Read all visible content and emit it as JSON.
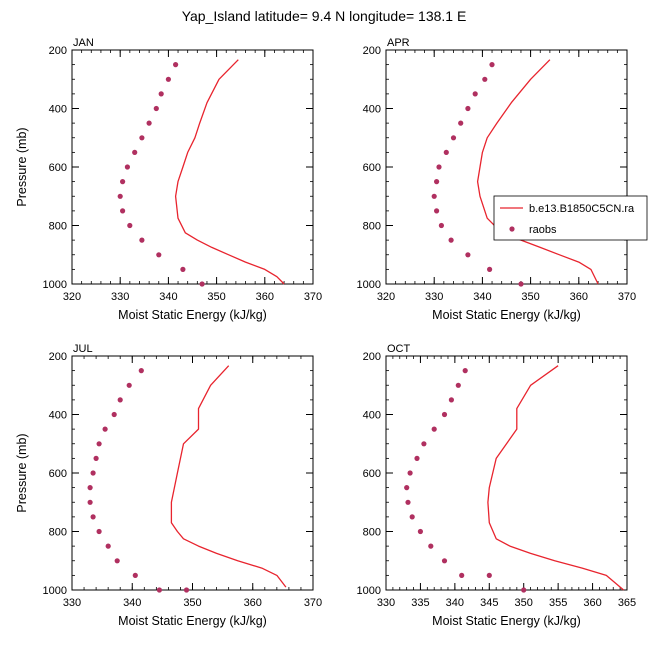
{
  "figure": {
    "title": "Yap_Island  latitude= 9.4 N longitude= 138.1 E"
  },
  "legend": {
    "entries": [
      {
        "label": "b.e13.B1850C5CN.ra",
        "kind": "line",
        "color": "#e8242e"
      },
      {
        "label": "raobs",
        "kind": "marker",
        "color": "#b03060"
      }
    ]
  },
  "colors": {
    "model_line": "#e8242e",
    "obs_marker": "#b03060"
  },
  "chart_data": [
    {
      "type": "line",
      "title": "JAN",
      "xlabel": "Moist Static Energy (kJ/kg)",
      "ylabel": "Pressure (mb)",
      "xlim": [
        320,
        370
      ],
      "ylim": [
        1000,
        200
      ],
      "xticks": [
        320,
        330,
        340,
        350,
        360,
        370
      ],
      "yticks": [
        200,
        400,
        600,
        800,
        1000
      ],
      "y_inverted": true,
      "grid": false,
      "series": [
        {
          "name": "b.e13.B1850C5CN.ra",
          "kind": "line",
          "x": [
            354.5,
            350.5,
            348,
            346.5,
            345.5,
            344,
            343,
            342,
            341.5,
            342,
            343.5,
            346,
            349,
            352.5,
            356,
            360,
            362.5,
            364
          ],
          "y": [
            233,
            300,
            380,
            450,
            500,
            550,
            600,
            650,
            700,
            775,
            825,
            850,
            875,
            900,
            925,
            950,
            975,
            1000
          ]
        },
        {
          "name": "raobs",
          "kind": "scatter",
          "x": [
            341.5,
            340,
            338.5,
            337.5,
            336,
            334.5,
            333,
            331.5,
            330.5,
            330,
            330.5,
            332,
            334.5,
            338,
            343,
            347
          ],
          "y": [
            250,
            300,
            350,
            400,
            450,
            500,
            550,
            600,
            650,
            700,
            750,
            800,
            850,
            900,
            950,
            1000
          ]
        }
      ]
    },
    {
      "type": "line",
      "title": "APR",
      "xlabel": "Moist Static Energy (kJ/kg)",
      "ylabel": "",
      "xlim": [
        320,
        370
      ],
      "ylim": [
        1000,
        200
      ],
      "xticks": [
        320,
        330,
        340,
        350,
        360,
        370
      ],
      "yticks": [
        200,
        400,
        600,
        800,
        1000
      ],
      "y_inverted": true,
      "grid": false,
      "series": [
        {
          "name": "b.e13.B1850C5CN.ra",
          "kind": "line",
          "x": [
            354,
            350,
            346,
            343,
            341,
            340,
            339.5,
            339,
            339.5,
            341,
            344,
            348,
            352,
            356,
            360,
            362.5,
            364
          ],
          "y": [
            233,
            300,
            380,
            450,
            500,
            550,
            600,
            650,
            700,
            775,
            825,
            850,
            875,
            900,
            925,
            950,
            1000
          ]
        },
        {
          "name": "raobs",
          "kind": "scatter",
          "x": [
            342,
            340.5,
            338.5,
            337,
            335.5,
            334,
            332.5,
            331,
            330.5,
            330,
            330.5,
            331.5,
            333.5,
            337,
            341.5,
            348
          ],
          "y": [
            250,
            300,
            350,
            400,
            450,
            500,
            550,
            600,
            650,
            700,
            750,
            800,
            850,
            900,
            950,
            1000
          ]
        }
      ]
    },
    {
      "type": "line",
      "title": "JUL",
      "xlabel": "Moist Static Energy (kJ/kg)",
      "ylabel": "Pressure (mb)",
      "xlim": [
        330,
        370
      ],
      "ylim": [
        1000,
        200
      ],
      "xticks": [
        330,
        340,
        350,
        360,
        370
      ],
      "yticks": [
        200,
        400,
        600,
        800,
        1000
      ],
      "y_inverted": true,
      "grid": false,
      "series": [
        {
          "name": "b.e13.B1850C5CN.ra",
          "kind": "line",
          "x": [
            356,
            353,
            351,
            351,
            348.5,
            347.5,
            346.5,
            346.5,
            347.5,
            348.5,
            351,
            354,
            357.5,
            361.5,
            364,
            365.5
          ],
          "y": [
            233,
            300,
            380,
            450,
            500,
            600,
            700,
            770,
            800,
            825,
            850,
            875,
            900,
            925,
            950,
            990
          ]
        },
        {
          "name": "raobs",
          "kind": "scatter",
          "x": [
            341.5,
            339.5,
            338,
            337,
            335.5,
            334.5,
            334,
            333.5,
            333,
            333,
            333.5,
            334.5,
            336,
            337.5,
            340.5,
            344.5,
            349
          ],
          "y": [
            250,
            300,
            350,
            400,
            450,
            500,
            550,
            600,
            650,
            700,
            750,
            800,
            850,
            900,
            950,
            1000,
            1000
          ]
        }
      ]
    },
    {
      "type": "line",
      "title": "OCT",
      "xlabel": "Moist Static Energy (kJ/kg)",
      "ylabel": "",
      "xlim": [
        330,
        365
      ],
      "ylim": [
        1000,
        200
      ],
      "xticks": [
        330,
        335,
        340,
        345,
        350,
        355,
        360,
        365
      ],
      "yticks": [
        200,
        400,
        600,
        800,
        1000
      ],
      "y_inverted": true,
      "grid": false,
      "series": [
        {
          "name": "b.e13.B1850C5CN.ra",
          "kind": "line",
          "x": [
            355,
            351,
            349,
            349,
            346,
            345,
            344.8,
            345,
            346,
            348,
            351,
            354.5,
            358.5,
            362,
            364.5
          ],
          "y": [
            233,
            300,
            380,
            450,
            550,
            650,
            700,
            770,
            825,
            850,
            875,
            900,
            925,
            950,
            1000
          ]
        },
        {
          "name": "raobs",
          "kind": "scatter",
          "x": [
            341.5,
            340.5,
            339.5,
            338.5,
            337,
            335.5,
            334.5,
            333.5,
            333,
            333.2,
            333.8,
            335,
            336.5,
            338.5,
            341,
            345,
            350
          ],
          "y": [
            250,
            300,
            350,
            400,
            450,
            500,
            550,
            600,
            650,
            700,
            750,
            800,
            850,
            900,
            950,
            950,
            1000
          ]
        }
      ]
    }
  ]
}
